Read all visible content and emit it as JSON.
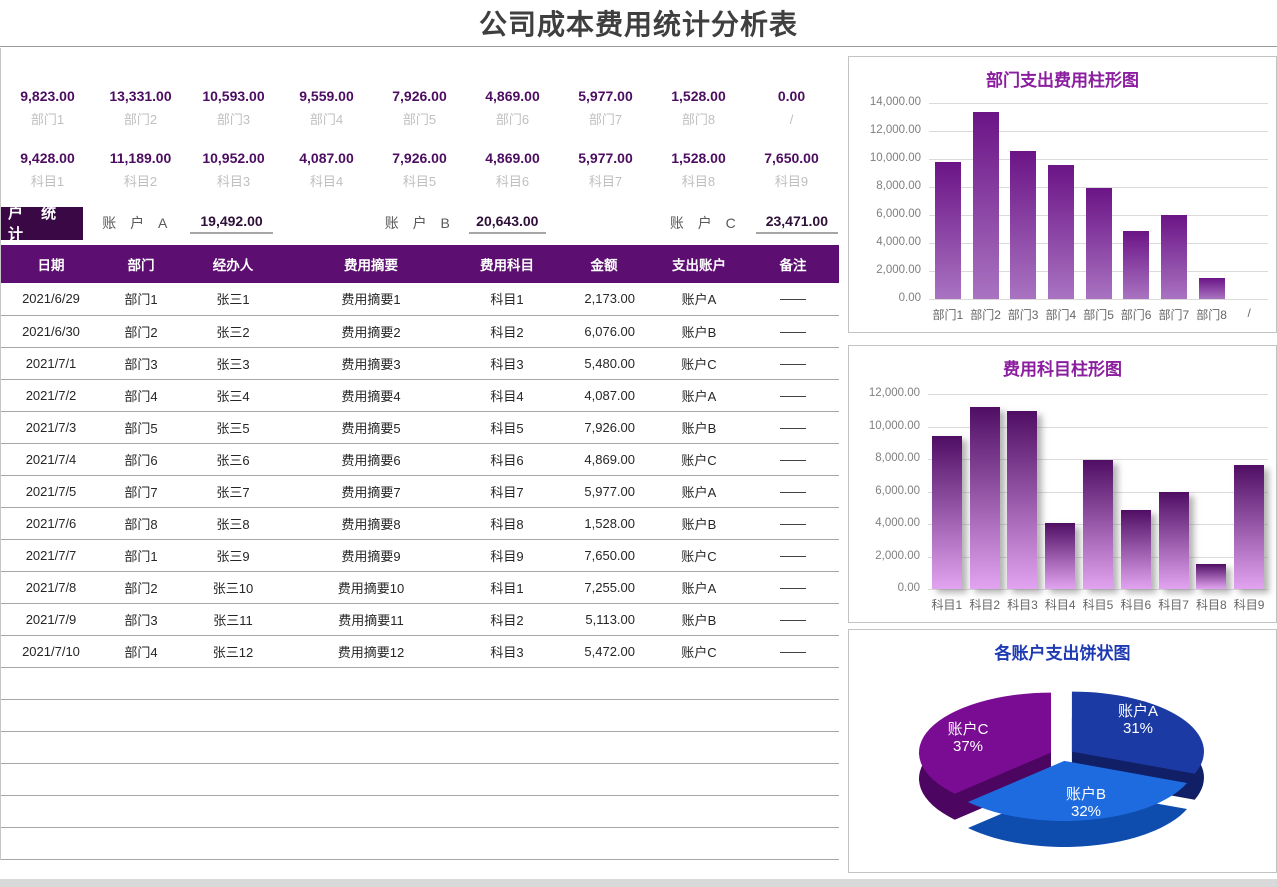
{
  "page": {
    "title": "公司成本费用统计分析表"
  },
  "summary": {
    "departments": [
      {
        "label": "部门1",
        "value": "9,823.00"
      },
      {
        "label": "部门2",
        "value": "13,331.00"
      },
      {
        "label": "部门3",
        "value": "10,593.00"
      },
      {
        "label": "部门4",
        "value": "9,559.00"
      },
      {
        "label": "部门5",
        "value": "7,926.00"
      },
      {
        "label": "部门6",
        "value": "4,869.00"
      },
      {
        "label": "部门7",
        "value": "5,977.00"
      },
      {
        "label": "部门8",
        "value": "1,528.00"
      },
      {
        "label": "/",
        "value": "0.00"
      }
    ],
    "subjects": [
      {
        "label": "科目1",
        "value": "9,428.00"
      },
      {
        "label": "科目2",
        "value": "11,189.00"
      },
      {
        "label": "科目3",
        "value": "10,952.00"
      },
      {
        "label": "科目4",
        "value": "4,087.00"
      },
      {
        "label": "科目5",
        "value": "7,926.00"
      },
      {
        "label": "科目6",
        "value": "4,869.00"
      },
      {
        "label": "科目7",
        "value": "5,977.00"
      },
      {
        "label": "科目8",
        "value": "1,528.00"
      },
      {
        "label": "科目9",
        "value": "7,650.00"
      }
    ]
  },
  "accounts": {
    "badge": "户 统 计",
    "items": [
      {
        "label": "账 户 A",
        "value": "19,492.00"
      },
      {
        "label": "账 户 B",
        "value": "20,643.00"
      },
      {
        "label": "账 户 C",
        "value": "23,471.00"
      }
    ]
  },
  "table": {
    "headers": [
      "日期",
      "部门",
      "经办人",
      "费用摘要",
      "费用科目",
      "金额",
      "支出账户",
      "备注"
    ],
    "rows": [
      [
        "2021/6/29",
        "部门1",
        "张三1",
        "费用摘要1",
        "科目1",
        "2,173.00",
        "账户A",
        "——"
      ],
      [
        "2021/6/30",
        "部门2",
        "张三2",
        "费用摘要2",
        "科目2",
        "6,076.00",
        "账户B",
        "——"
      ],
      [
        "2021/7/1",
        "部门3",
        "张三3",
        "费用摘要3",
        "科目3",
        "5,480.00",
        "账户C",
        "——"
      ],
      [
        "2021/7/2",
        "部门4",
        "张三4",
        "费用摘要4",
        "科目4",
        "4,087.00",
        "账户A",
        "——"
      ],
      [
        "2021/7/3",
        "部门5",
        "张三5",
        "费用摘要5",
        "科目5",
        "7,926.00",
        "账户B",
        "——"
      ],
      [
        "2021/7/4",
        "部门6",
        "张三6",
        "费用摘要6",
        "科目6",
        "4,869.00",
        "账户C",
        "——"
      ],
      [
        "2021/7/5",
        "部门7",
        "张三7",
        "费用摘要7",
        "科目7",
        "5,977.00",
        "账户A",
        "——"
      ],
      [
        "2021/7/6",
        "部门8",
        "张三8",
        "费用摘要8",
        "科目8",
        "1,528.00",
        "账户B",
        "——"
      ],
      [
        "2021/7/7",
        "部门1",
        "张三9",
        "费用摘要9",
        "科目9",
        "7,650.00",
        "账户C",
        "——"
      ],
      [
        "2021/7/8",
        "部门2",
        "张三10",
        "费用摘要10",
        "科目1",
        "7,255.00",
        "账户A",
        "——"
      ],
      [
        "2021/7/9",
        "部门3",
        "张三11",
        "费用摘要11",
        "科目2",
        "5,113.00",
        "账户B",
        "——"
      ],
      [
        "2021/7/10",
        "部门4",
        "张三12",
        "费用摘要12",
        "科目3",
        "5,472.00",
        "账户C",
        "——"
      ]
    ],
    "empty_row_count": 6
  },
  "chart_data": [
    {
      "type": "bar",
      "title": "部门支出费用柱形图",
      "categories": [
        "部门1",
        "部门2",
        "部门3",
        "部门4",
        "部门5",
        "部门6",
        "部门7",
        "部门8",
        "/"
      ],
      "values": [
        9823,
        13331,
        10593,
        9559,
        7926,
        4869,
        5977,
        1528,
        0
      ],
      "xlabel": "",
      "ylabel": "",
      "ylim": [
        0,
        14000
      ],
      "ytick_step": 2000,
      "grid": true,
      "legend": "none",
      "bar_top_color": "#6b1486",
      "bar_bottom_color": "#a973c1"
    },
    {
      "type": "bar",
      "title": "费用科目柱形图",
      "categories": [
        "科目1",
        "科目2",
        "科目3",
        "科目4",
        "科目5",
        "科目6",
        "科目7",
        "科目8",
        "科目9"
      ],
      "values": [
        9428,
        11189,
        10952,
        4087,
        7926,
        4869,
        5977,
        1528,
        7650
      ],
      "xlabel": "",
      "ylabel": "",
      "ylim": [
        0,
        12000
      ],
      "ytick_step": 2000,
      "grid": true,
      "legend": "none",
      "bar_top_color": "#4f0e63",
      "bar_bottom_color": "#e2a4f0",
      "shadow": true
    },
    {
      "type": "pie",
      "title": "各账户支出饼状图",
      "slices": [
        {
          "label": "账户A",
          "percent": 31,
          "color": "#1b3aa3",
          "side_color": "#101f66"
        },
        {
          "label": "账户B",
          "percent": 32,
          "color": "#1e6bdf",
          "side_color": "#0e4cad"
        },
        {
          "label": "账户C",
          "percent": 37,
          "color": "#7a0c93",
          "side_color": "#4c0560"
        }
      ],
      "legend": "none"
    }
  ],
  "colors": {
    "summary_value": "#4c0d61",
    "summary_label": "#bfbfbf",
    "badge_bg": "#3a0845",
    "table_header_bg": "#5c0f70",
    "chart_title_purple": "#8b1e9f",
    "chart_title_blue": "#1f3bb3"
  }
}
